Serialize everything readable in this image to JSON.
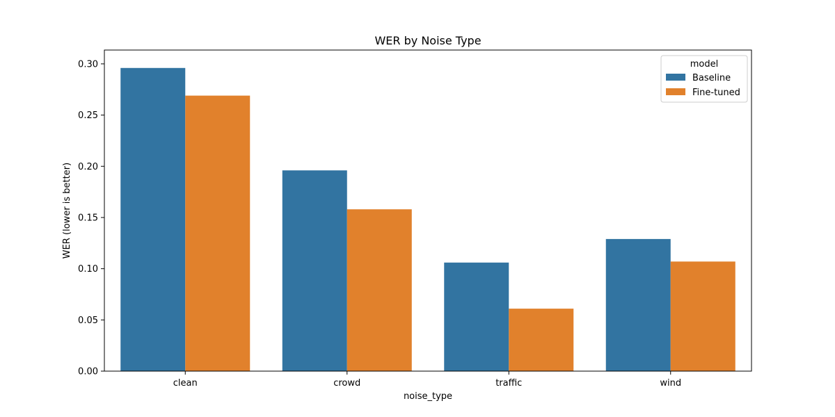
{
  "chart_data": {
    "type": "bar",
    "title": "WER by Noise Type",
    "xlabel": "noise_type",
    "ylabel": "WER (lower is better)",
    "categories": [
      "clean",
      "crowd",
      "traffic",
      "wind"
    ],
    "series": [
      {
        "name": "Baseline",
        "color": "#3274a1",
        "values": [
          0.296,
          0.196,
          0.106,
          0.129
        ]
      },
      {
        "name": "Fine-tuned",
        "color": "#e1812c",
        "values": [
          0.269,
          0.158,
          0.061,
          0.107
        ]
      }
    ],
    "ylim": [
      0,
      0.3135
    ],
    "yticks": [
      "0.00",
      "0.05",
      "0.10",
      "0.15",
      "0.20",
      "0.25",
      "0.30"
    ],
    "grid": false,
    "legend": {
      "title": "model",
      "placement": "top-right"
    }
  }
}
